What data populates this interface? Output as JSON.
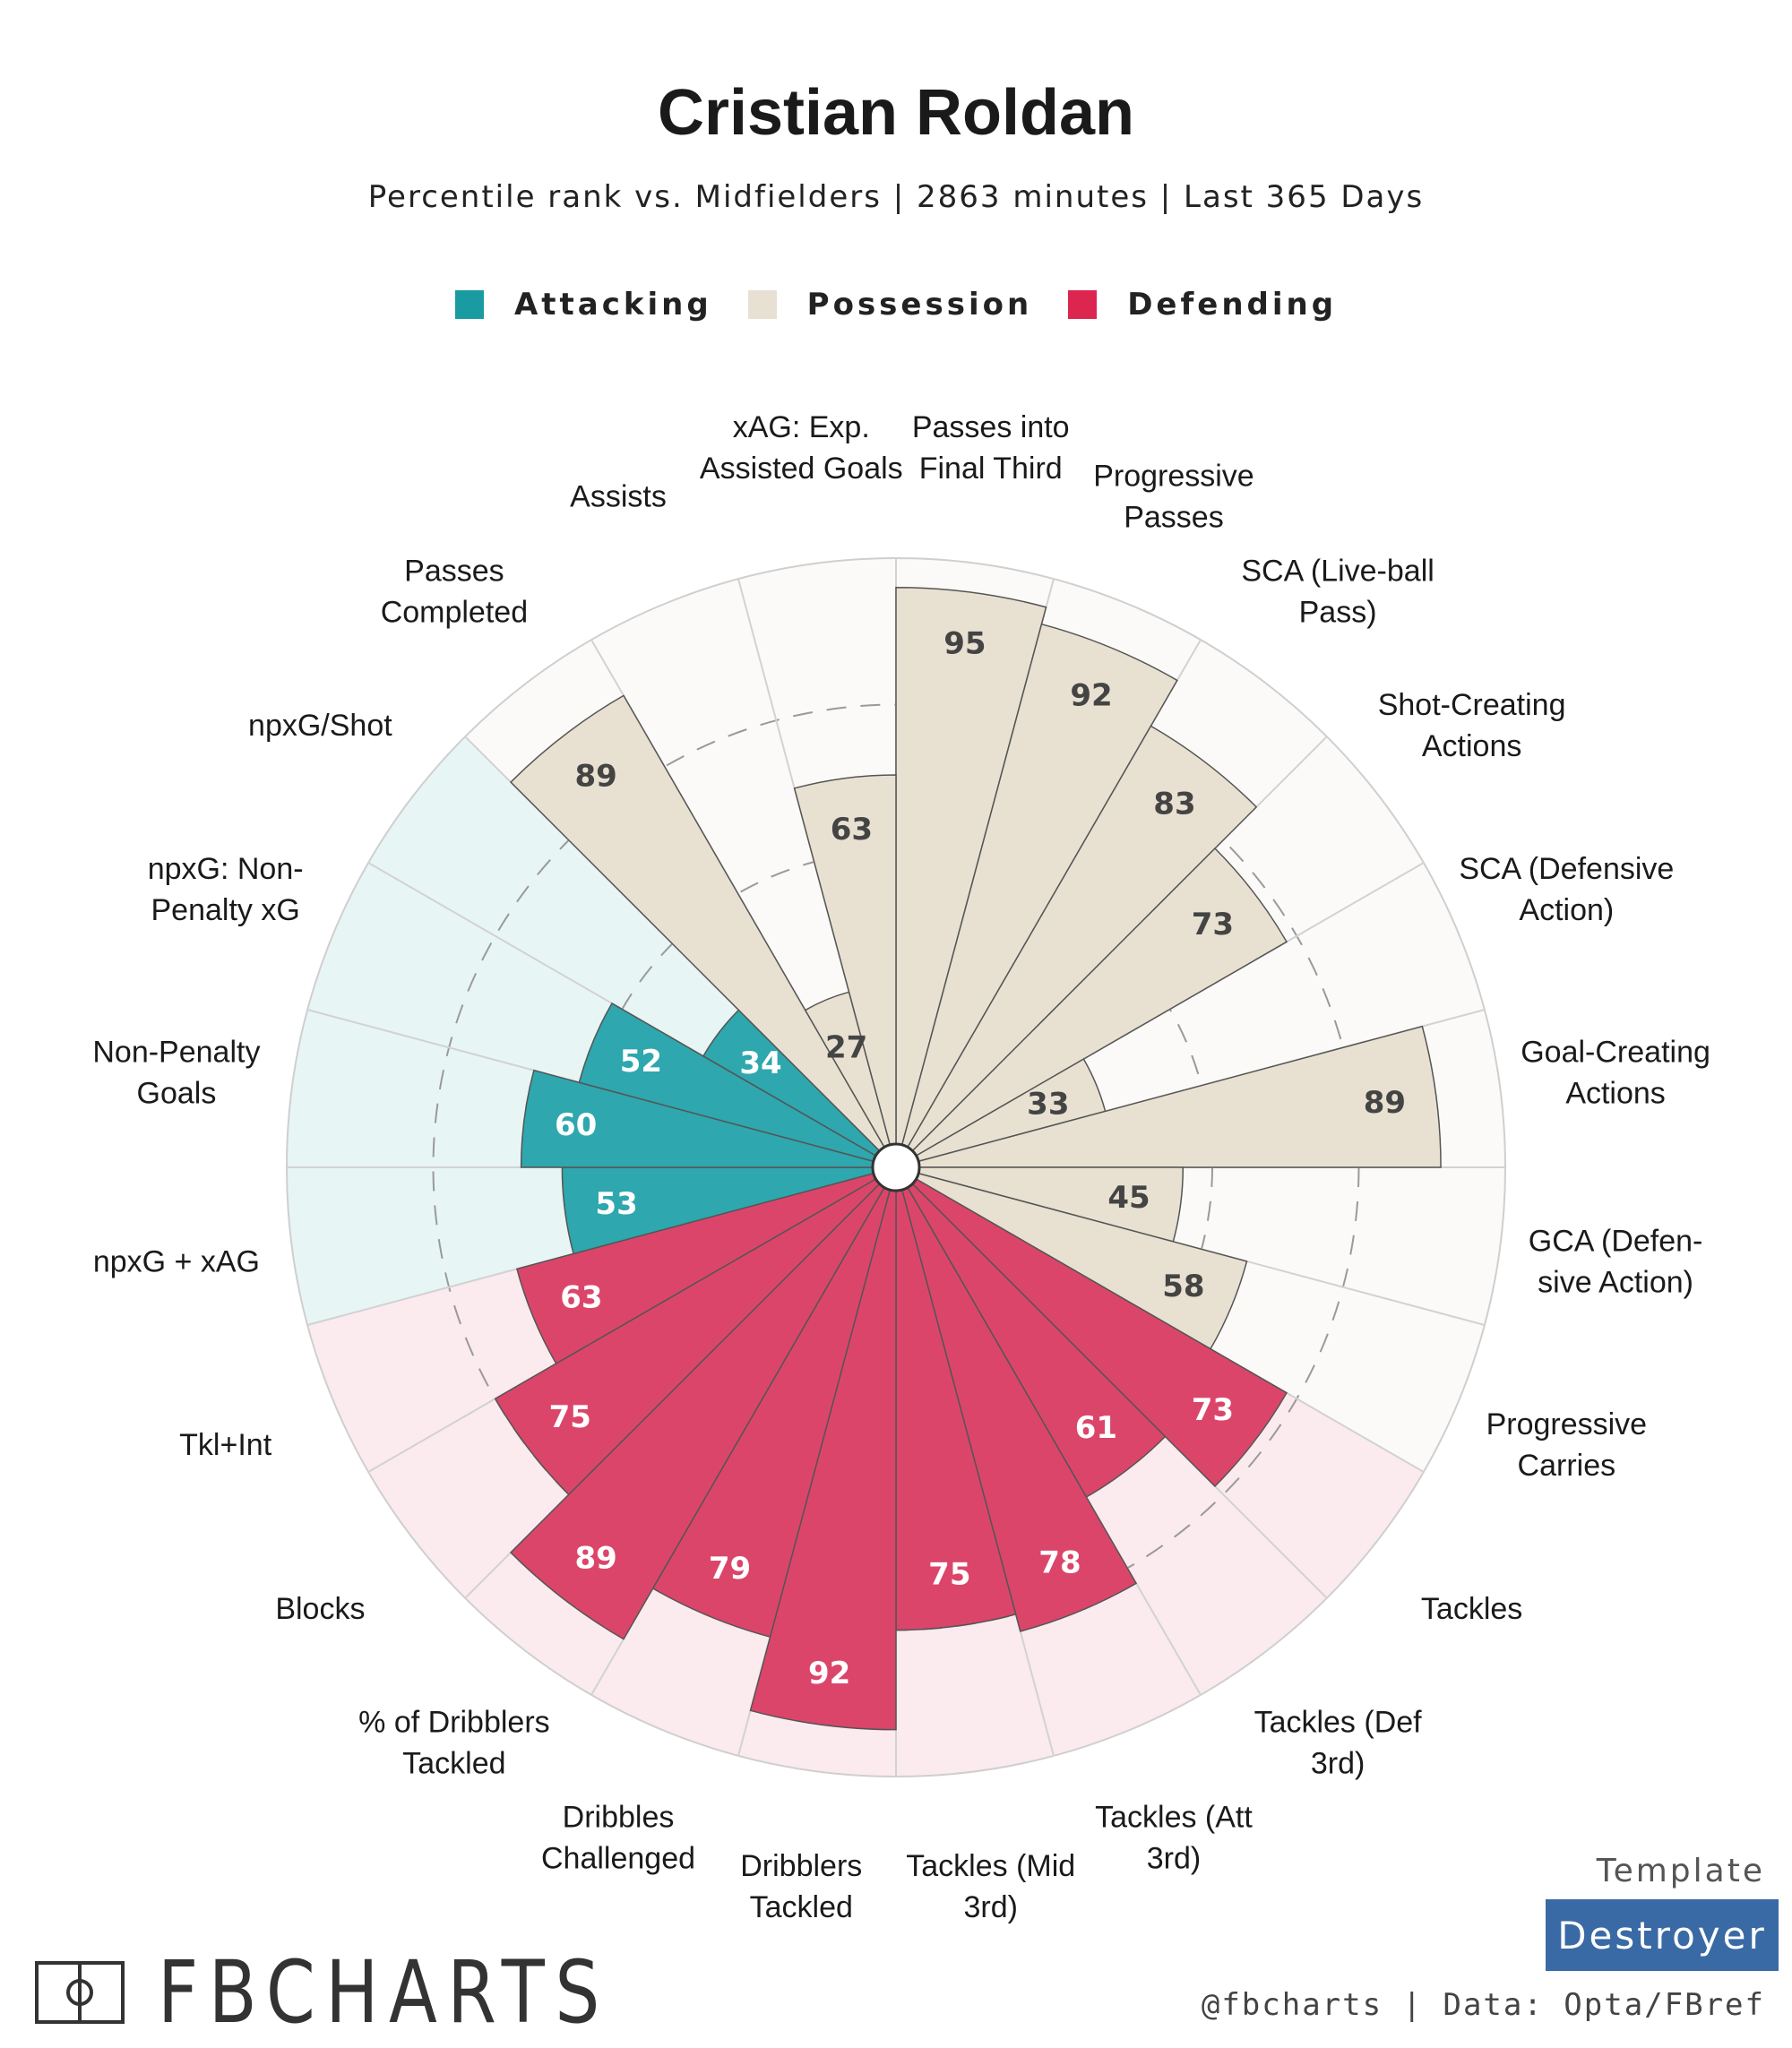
{
  "title": "Cristian Roldan",
  "subtitle": "Percentile rank vs. Midfielders | 2863 minutes | Last 365 Days",
  "legend": [
    {
      "label": "Attacking",
      "color": "#1a9ba1"
    },
    {
      "label": "Possession",
      "color": "#e8e1d3"
    },
    {
      "label": "Defending",
      "color": "#dc254f"
    }
  ],
  "chart_data": {
    "type": "radial-bar",
    "scale": [
      0,
      100
    ],
    "categories": [
      {
        "label": "Passes into Final Third",
        "value": 95,
        "group": "Possession"
      },
      {
        "label": "Progressive Passes",
        "value": 92,
        "group": "Possession"
      },
      {
        "label": "SCA (Live-ball Pass)",
        "value": 83,
        "group": "Possession"
      },
      {
        "label": "Shot-Creating Actions",
        "value": 73,
        "group": "Possession"
      },
      {
        "label": "SCA (Defensive Action)",
        "value": 33,
        "group": "Possession"
      },
      {
        "label": "Goal-Creating Actions",
        "value": 89,
        "group": "Possession"
      },
      {
        "label": "GCA (Defen-sive Action)",
        "value": 45,
        "group": "Possession"
      },
      {
        "label": "Progressive Carries",
        "value": 58,
        "group": "Possession"
      },
      {
        "label": "Tackles",
        "value": 73,
        "group": "Defending"
      },
      {
        "label": "Tackles (Def 3rd)",
        "value": 61,
        "group": "Defending"
      },
      {
        "label": "Tackles (Att 3rd)",
        "value": 78,
        "group": "Defending"
      },
      {
        "label": "Tackles (Mid 3rd)",
        "value": 75,
        "group": "Defending"
      },
      {
        "label": "Dribblers Tackled",
        "value": 92,
        "group": "Defending"
      },
      {
        "label": "Dribbles Challenged",
        "value": 79,
        "group": "Defending"
      },
      {
        "label": "% of Dribblers Tackled",
        "value": 89,
        "group": "Defending"
      },
      {
        "label": "Blocks",
        "value": 75,
        "group": "Defending"
      },
      {
        "label": "Tkl+Int",
        "value": 63,
        "group": "Defending"
      },
      {
        "label": "npxG + xAG",
        "value": 53,
        "group": "Attacking"
      },
      {
        "label": "Non-Penalty Goals",
        "value": 60,
        "group": "Attacking"
      },
      {
        "label": "npxG: Non-Penalty xG",
        "value": 52,
        "group": "Attacking"
      },
      {
        "label": "npxG/Shot",
        "value": 34,
        "group": "Attacking"
      },
      {
        "label": "Passes Completed",
        "value": 89,
        "group": "Possession"
      },
      {
        "label": "Assists",
        "value": 27,
        "group": "Possession"
      },
      {
        "label": "xAG: Exp. Assisted Goals",
        "value": 63,
        "group": "Possession"
      }
    ],
    "label_lines": [
      [
        "Passes into",
        "Final Third"
      ],
      [
        "Progressive",
        "Passes"
      ],
      [
        "SCA (Live-ball",
        "Pass)"
      ],
      [
        "Shot-Creating",
        "Actions"
      ],
      [
        "SCA (Defensive",
        "Action)"
      ],
      [
        "Goal-Creating",
        "Actions"
      ],
      [
        "GCA (Defen-",
        "sive Action)"
      ],
      [
        "Progressive",
        "Carries"
      ],
      [
        "Tackles"
      ],
      [
        "Tackles (Def",
        "3rd)"
      ],
      [
        "Tackles (Att",
        "3rd)"
      ],
      [
        "Tackles (Mid",
        "3rd)"
      ],
      [
        "Dribblers",
        "Tackled"
      ],
      [
        "Dribbles",
        "Challenged"
      ],
      [
        "% of Dribblers",
        "Tackled"
      ],
      [
        "Blocks"
      ],
      [
        "Tkl+Int"
      ],
      [
        "npxG + xAG"
      ],
      [
        "Non-Penalty",
        "Goals"
      ],
      [
        "npxG: Non-",
        "Penalty xG"
      ],
      [
        "npxG/Shot"
      ],
      [
        "Passes",
        "Completed"
      ],
      [
        "Assists"
      ],
      [
        "xAG: Exp.",
        "Assisted Goals"
      ]
    ],
    "group_colors": {
      "Attacking": {
        "bar": "#2ea7ae",
        "bg": "#e8f5f5"
      },
      "Possession": {
        "bar": "#e8e1d1",
        "bg": "#fbfaf8"
      },
      "Defending": {
        "bar": "#dc456a",
        "bg": "#fbeaee"
      }
    }
  },
  "footer": {
    "template_label": "Template",
    "template_name": "Destroyer",
    "credits": "@fbcharts | Data: Opta/FBref",
    "logo_text": "FBCHARTS"
  }
}
